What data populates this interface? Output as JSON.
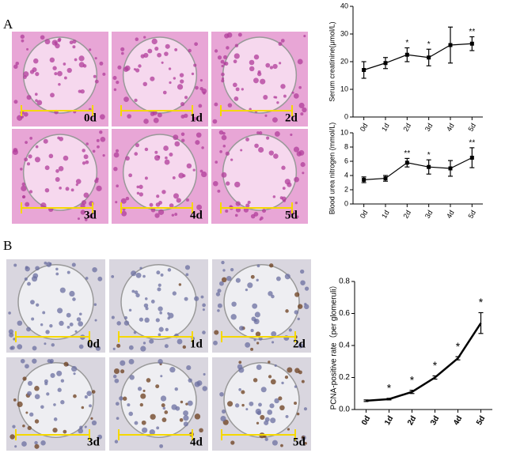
{
  "panel_labels": [
    "A",
    "B"
  ],
  "images": {
    "A": [
      "0d",
      "1d",
      "2d",
      "3d",
      "4d",
      "5d"
    ],
    "B": [
      "0d",
      "1d",
      "2d",
      "3d",
      "4d",
      "5d"
    ]
  },
  "chart_data": [
    {
      "type": "line",
      "y_label": "Serum creatinine(μmol/L)",
      "categories": [
        "0d",
        "1d",
        "2d",
        "3d",
        "4d",
        "5d"
      ],
      "values": [
        17,
        19.5,
        22.5,
        21.5,
        26,
        26.5
      ],
      "errors": [
        3,
        2,
        2.5,
        3,
        6.5,
        2.5
      ],
      "annotations": [
        null,
        null,
        "*",
        "*",
        null,
        "**"
      ],
      "color": "#000000",
      "ylim": [
        0,
        40
      ],
      "yticks": [
        0,
        10,
        20,
        30,
        40
      ]
    },
    {
      "type": "line",
      "y_label": "Blood urea nitrogen (mmol/L)",
      "categories": [
        "0d",
        "1d",
        "2d",
        "3d",
        "4d",
        "5d"
      ],
      "values": [
        3.4,
        3.6,
        5.8,
        5.2,
        5.0,
        6.5
      ],
      "errors": [
        0.4,
        0.4,
        0.6,
        1.0,
        1.1,
        1.4
      ],
      "annotations": [
        null,
        null,
        "**",
        "*",
        null,
        "**"
      ],
      "color": "#000000",
      "ylim": [
        0,
        10
      ],
      "yticks": [
        0,
        2,
        4,
        6,
        8,
        10
      ]
    },
    {
      "type": "line",
      "y_label": "PCNA-positive rate（per glomeruli）",
      "categories": [
        "0d",
        "1d",
        "2d",
        "3d",
        "4d",
        "5d"
      ],
      "values": [
        0.055,
        0.065,
        0.11,
        0.2,
        0.32,
        0.54
      ],
      "errors": [
        0.005,
        0.005,
        0.01,
        0.01,
        0.01,
        0.065
      ],
      "annotations": [
        null,
        "*",
        "*",
        "*",
        "*",
        "*"
      ],
      "color": "#000000",
      "ylim": [
        0,
        0.8
      ],
      "yticks": [
        {
          "value": 0,
          "label": "0.0"
        },
        0.2,
        0.4,
        0.6,
        0.8
      ]
    }
  ]
}
